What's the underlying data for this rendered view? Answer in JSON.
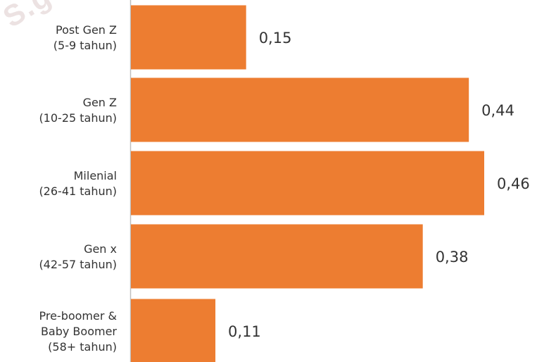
{
  "watermark": "S.go.",
  "chart_data": {
    "type": "bar",
    "orientation": "horizontal",
    "categories": [
      [
        "Post Gen Z",
        "(5-9 tahun)"
      ],
      [
        "Gen Z",
        "(10-25 tahun)"
      ],
      [
        "Milenial",
        "(26-41 tahun)"
      ],
      [
        "Gen x",
        "(42-57 tahun)"
      ],
      [
        "Pre-boomer &",
        "Baby Boomer",
        "(58+ tahun)"
      ]
    ],
    "values": [
      0.15,
      0.44,
      0.46,
      0.38,
      0.11
    ],
    "value_labels": [
      "0,15",
      "0,44",
      "0,46",
      "0,38",
      "0,11"
    ],
    "xlim": [
      0,
      0.5
    ],
    "title": "",
    "xlabel": "",
    "ylabel": "",
    "grid": false,
    "bar_color": "#ED7D31",
    "axis_color": "#bfbfbf",
    "text_color": "#333333"
  }
}
